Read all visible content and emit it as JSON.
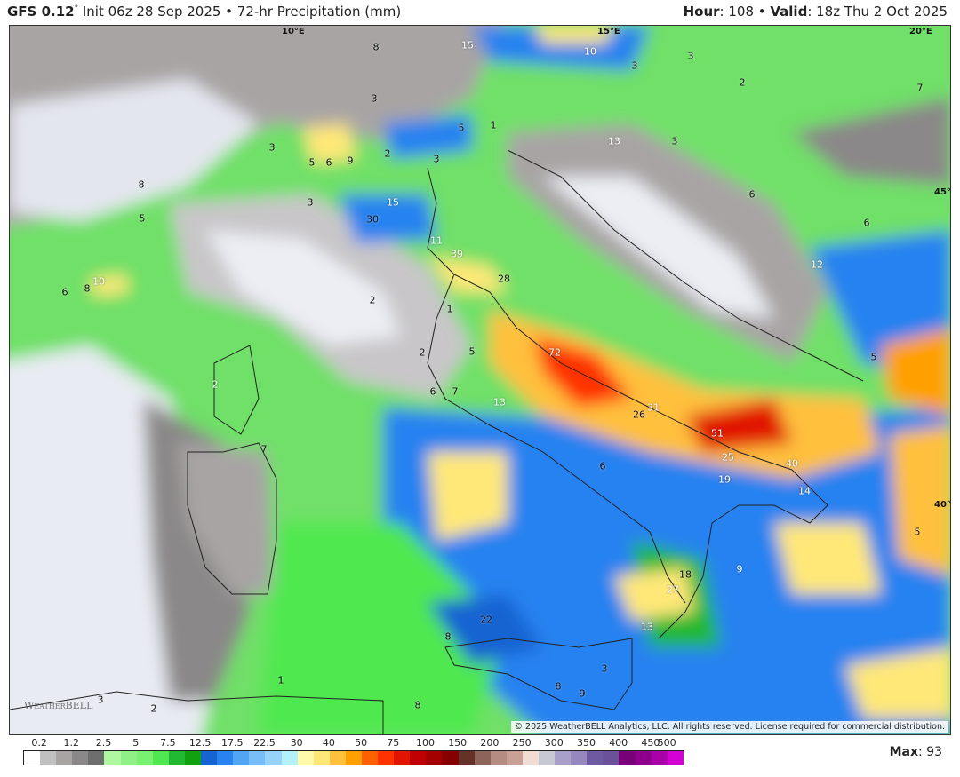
{
  "header": {
    "model": "GFS 0.12",
    "degree": "°",
    "init": " Init 06z 28 Sep 2025 • 72-hr Precipitation (mm)",
    "hour_label": "Hour",
    "hour_value": ": 108 • ",
    "valid_label": "Valid",
    "valid_value": ": 18z Thu 2 Oct 2025"
  },
  "map": {
    "gridlabels": [
      "10°E",
      "15°E",
      "20°E",
      "45°N",
      "40°N"
    ],
    "values": [
      "8",
      "15",
      "10",
      "3",
      "3",
      "2",
      "7",
      "3",
      "1",
      "5",
      "13",
      "3",
      "3",
      "5",
      "6",
      "9",
      "2",
      "3",
      "8",
      "5",
      "6",
      "15",
      "30",
      "6",
      "3",
      "11",
      "39",
      "28",
      "12",
      "10",
      "6",
      "8",
      "2",
      "1",
      "72",
      "5",
      "2",
      "13",
      "6",
      "7",
      "26",
      "31",
      "51",
      "25",
      "40",
      "19",
      "14",
      "6",
      "2",
      "7",
      "18",
      "9",
      "27",
      "22",
      "8",
      "13",
      "3",
      "8",
      "9",
      "8",
      "3",
      "2",
      "1",
      "5",
      "5"
    ],
    "copyright": "© 2025 WeatherBELL Analytics, LLC. All rights reserved. License required for commercial distribution.",
    "watermark": "WeatherBELL"
  },
  "legend": {
    "labels": [
      "0.2",
      "1.2",
      "2.5",
      "5",
      "7.5",
      "12.5",
      "17.5",
      "22.5",
      "30",
      "40",
      "50",
      "75",
      "100",
      "150",
      "200",
      "250",
      "300",
      "350",
      "400",
      "450",
      "500"
    ],
    "colors": [
      "#ffffff",
      "#c0c0c0",
      "#a8a4a4",
      "#8a8888",
      "#6e6e6e",
      "#b0f8a0",
      "#90f088",
      "#78f070",
      "#50e850",
      "#20b830",
      "#10a010",
      "#1464d2",
      "#2882f0",
      "#50a5f5",
      "#78bdf8",
      "#96d2fa",
      "#b4f0fa",
      "#fffaaa",
      "#ffe878",
      "#ffc03c",
      "#ffa000",
      "#ff6000",
      "#ff3200",
      "#e11400",
      "#c00000",
      "#a50000",
      "#870000",
      "#643228",
      "#8c645a",
      "#b48c82",
      "#c8a096",
      "#f0dcd2",
      "#c8c8d2",
      "#a8a0c8",
      "#9688be",
      "#6e5aa0",
      "#6a5098",
      "#780078",
      "#8c008c",
      "#aa00aa",
      "#d200d2"
    ]
  },
  "max": {
    "label": "Max",
    "value": ": 93"
  }
}
